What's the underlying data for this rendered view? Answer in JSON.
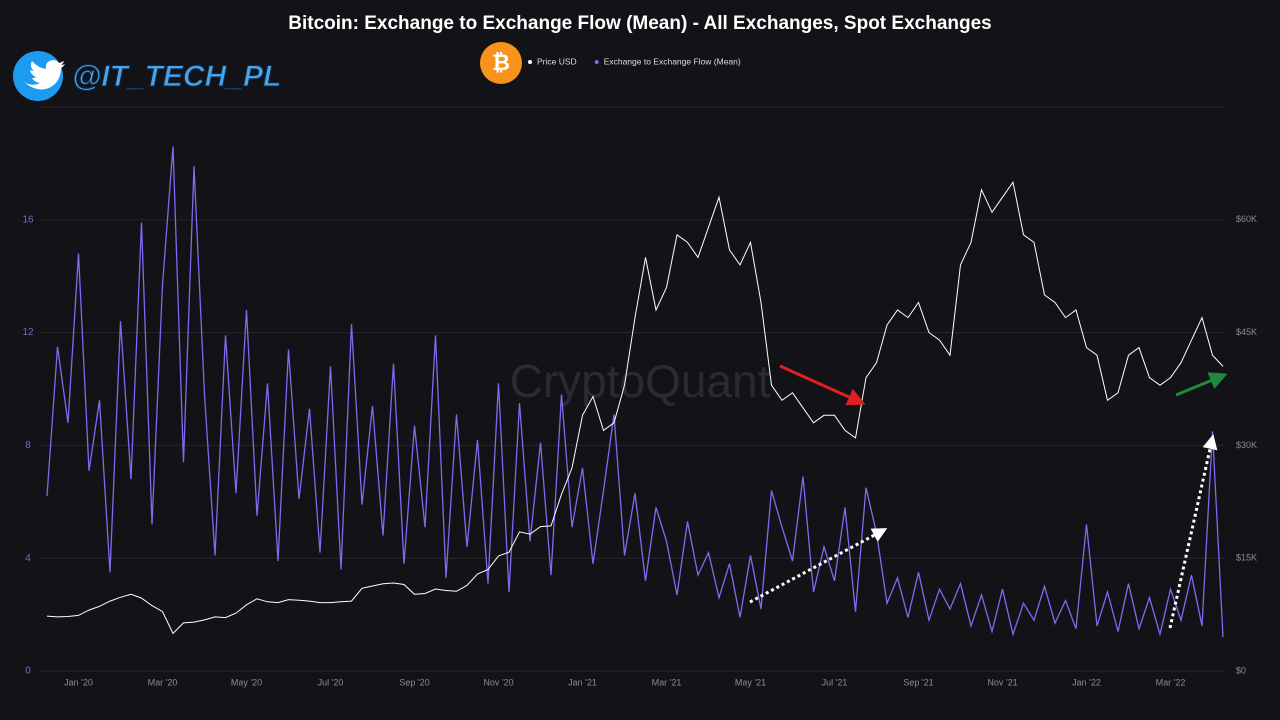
{
  "chart_data": {
    "type": "line",
    "title": "Bitcoin: Exchange to Exchange Flow (Mean) - All Exchanges, Spot Exchanges",
    "handle": "@IT_TECH_PL",
    "watermark": "CryptoQuant",
    "categories": [
      null,
      null,
      null,
      "Jan '20",
      null,
      null,
      null,
      null,
      null,
      null,
      null,
      "Mar '20",
      null,
      null,
      null,
      null,
      null,
      null,
      null,
      "May '20",
      null,
      null,
      null,
      null,
      null,
      null,
      null,
      "Jul '20",
      null,
      null,
      null,
      null,
      null,
      null,
      null,
      "Sep '20",
      null,
      null,
      null,
      null,
      null,
      null,
      null,
      "Nov '20",
      null,
      null,
      null,
      null,
      null,
      null,
      null,
      "Jan '21",
      null,
      null,
      null,
      null,
      null,
      null,
      null,
      "Mar '21",
      null,
      null,
      null,
      null,
      null,
      null,
      null,
      "May '21",
      null,
      null,
      null,
      null,
      null,
      null,
      null,
      "Jul '21",
      null,
      null,
      null,
      null,
      null,
      null,
      null,
      "Sep '21",
      null,
      null,
      null,
      null,
      null,
      null,
      null,
      "Nov '21",
      null,
      null,
      null,
      null,
      null,
      null,
      null,
      "Jan '22",
      null,
      null,
      null,
      null,
      null,
      null,
      null,
      "Mar '22",
      null,
      null,
      null,
      null,
      null
    ],
    "series": [
      {
        "name": "Price USD",
        "color": "#ffffff",
        "axis": "y2",
        "values": [
          7300,
          7200,
          7250,
          7400,
          8100,
          8600,
          9300,
          9800,
          10200,
          9700,
          8700,
          7900,
          5000,
          6400,
          6500,
          6800,
          7200,
          7100,
          7700,
          8800,
          9600,
          9200,
          9100,
          9500,
          9400,
          9300,
          9100,
          9100,
          9200,
          9300,
          11000,
          11300,
          11600,
          11700,
          11500,
          10200,
          10300,
          10900,
          10700,
          10600,
          11400,
          12900,
          13500,
          15300,
          15800,
          18500,
          18200,
          19200,
          19300,
          23500,
          27000,
          34000,
          36500,
          32000,
          33000,
          38000,
          47000,
          55000,
          48000,
          51000,
          58000,
          57000,
          55000,
          59000,
          63000,
          56000,
          54000,
          57000,
          49000,
          38000,
          36000,
          37000,
          35000,
          33000,
          34000,
          34000,
          32000,
          31000,
          39000,
          41000,
          46000,
          48000,
          47000,
          49000,
          45000,
          44000,
          42000,
          54000,
          57000,
          64000,
          61000,
          63000,
          65000,
          58000,
          57000,
          50000,
          49000,
          47000,
          48000,
          43000,
          42000,
          36000,
          37000,
          42000,
          43000,
          39000,
          38000,
          39000,
          41000,
          44000,
          47000,
          42000,
          40500
        ]
      },
      {
        "name": "Exchange to Exchange Flow (Mean)",
        "color": "#7b6cf0",
        "axis": "y",
        "values": [
          6.2,
          11.5,
          8.8,
          14.8,
          7.1,
          9.6,
          3.5,
          12.4,
          6.8,
          15.9,
          5.2,
          13.7,
          18.6,
          7.4,
          17.9,
          9.8,
          4.1,
          11.9,
          6.3,
          12.8,
          5.5,
          10.2,
          3.9,
          11.4,
          6.1,
          9.3,
          4.2,
          10.8,
          3.6,
          12.3,
          5.9,
          9.4,
          4.8,
          10.9,
          3.8,
          8.7,
          5.1,
          11.9,
          3.3,
          9.1,
          4.4,
          8.2,
          3.1,
          10.2,
          2.8,
          9.5,
          4.6,
          8.1,
          3.4,
          9.8,
          5.1,
          7.2,
          3.8,
          6.4,
          9.1,
          4.1,
          6.3,
          3.2,
          5.8,
          4.6,
          2.7,
          5.3,
          3.4,
          4.2,
          2.6,
          3.8,
          1.9,
          4.1,
          2.2,
          6.4,
          5.1,
          3.9,
          6.9,
          2.8,
          4.4,
          3.2,
          5.8,
          2.1,
          6.5,
          4.9,
          2.4,
          3.3,
          1.9,
          3.5,
          1.8,
          2.9,
          2.2,
          3.1,
          1.6,
          2.7,
          1.4,
          2.9,
          1.3,
          2.4,
          1.8,
          3.0,
          1.7,
          2.5,
          1.5,
          5.2,
          1.6,
          2.8,
          1.4,
          3.1,
          1.5,
          2.6,
          1.3,
          2.9,
          1.8,
          3.4,
          1.6,
          8.5,
          1.2
        ]
      }
    ],
    "ylim": [
      0,
      20
    ],
    "yticks": [
      0,
      4,
      8,
      12,
      16
    ],
    "y2lim": [
      0,
      75000
    ],
    "y2ticks": [
      {
        "value": 0,
        "label": "$0"
      },
      {
        "value": 15000,
        "label": "$15K"
      },
      {
        "value": 30000,
        "label": "$30K"
      },
      {
        "value": 45000,
        "label": "$45K"
      },
      {
        "value": 60000,
        "label": "$60K"
      }
    ],
    "grid": true
  }
}
